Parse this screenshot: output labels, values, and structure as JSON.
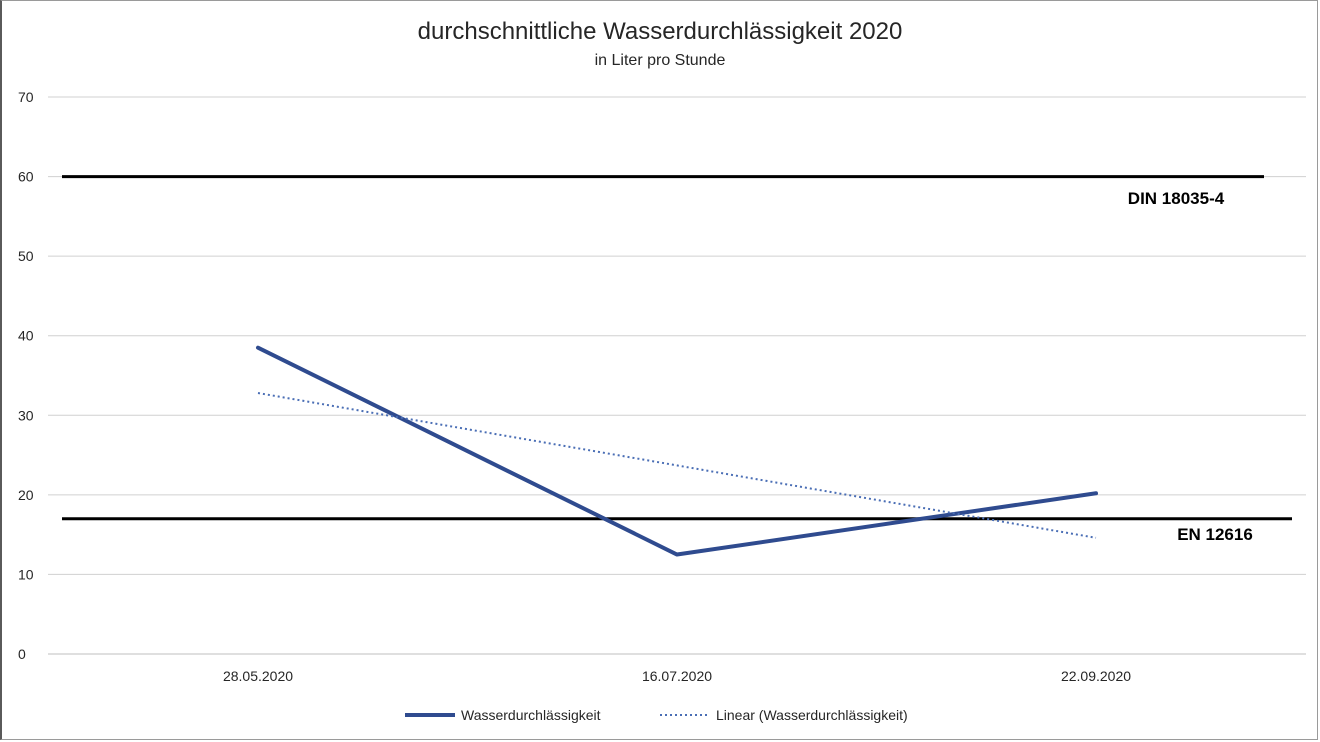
{
  "chart_data": {
    "type": "line",
    "title": "durchschnittliche Wasserdurchlässigkeit 2020",
    "subtitle": "in Liter pro Stunde",
    "categories": [
      "28.05.2020",
      "16.07.2020",
      "22.09.2020"
    ],
    "series": [
      {
        "name": "Wasserdurchlässigkeit",
        "values": [
          38.5,
          12.5,
          20.2
        ],
        "color": "#2F4B8F",
        "style": "solid"
      },
      {
        "name": "Linear (Wasserdurchlässigkeit)",
        "values": [
          32.8,
          23.7,
          14.6
        ],
        "color": "#4A6EB5",
        "style": "dotted"
      }
    ],
    "reference_lines": [
      {
        "label": "DIN 18035-4",
        "value": 60,
        "color": "#000000"
      },
      {
        "label": "EN 12616",
        "value": 17,
        "color": "#000000"
      }
    ],
    "yticks": [
      0,
      10,
      20,
      30,
      40,
      50,
      60,
      70
    ],
    "ylim": [
      0,
      70
    ],
    "grid": true,
    "legend_position": "bottom"
  }
}
